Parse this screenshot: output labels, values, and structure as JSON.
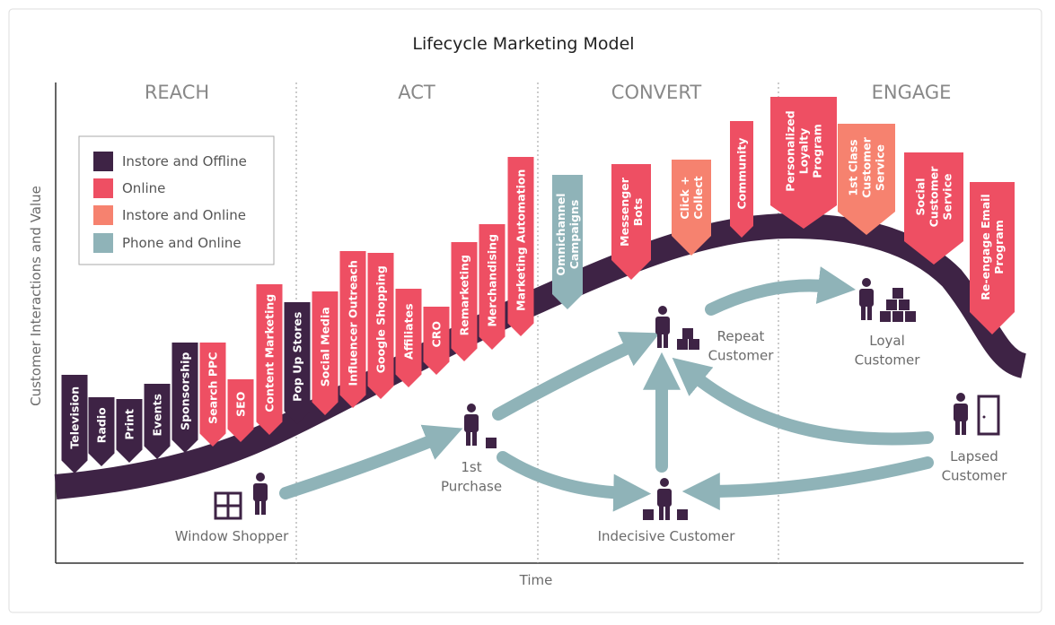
{
  "title": "Lifecycle Marketing Model",
  "axes": {
    "y_label": "Customer Interactions and Value",
    "x_label": "Time"
  },
  "phases": [
    "REACH",
    "ACT",
    "CONVERT",
    "ENGAGE"
  ],
  "legend": [
    {
      "label": "Instore and Offline",
      "color": "#3e2345"
    },
    {
      "label": "Online",
      "color": "#ee4f63"
    },
    {
      "label": "Instore and Online",
      "color": "#f6826f"
    },
    {
      "label": "Phone and Online",
      "color": "#8fb3b8"
    }
  ],
  "banners": [
    {
      "lines": [
        "Television"
      ],
      "color": "#3e2345"
    },
    {
      "lines": [
        "Radio"
      ],
      "color": "#3e2345"
    },
    {
      "lines": [
        "Print"
      ],
      "color": "#3e2345"
    },
    {
      "lines": [
        "Events"
      ],
      "color": "#3e2345"
    },
    {
      "lines": [
        "Sponsorship"
      ],
      "color": "#3e2345"
    },
    {
      "lines": [
        "Search PPC"
      ],
      "color": "#ee4f63"
    },
    {
      "lines": [
        "SEO"
      ],
      "color": "#ee4f63"
    },
    {
      "lines": [
        "Content Marketing"
      ],
      "color": "#ee4f63"
    },
    {
      "lines": [
        "Pop Up Stores"
      ],
      "color": "#3e2345"
    },
    {
      "lines": [
        "Social Media"
      ],
      "color": "#ee4f63"
    },
    {
      "lines": [
        "Influencer Outreach"
      ],
      "color": "#ee4f63"
    },
    {
      "lines": [
        "Google Shopping"
      ],
      "color": "#ee4f63"
    },
    {
      "lines": [
        "Affiliates"
      ],
      "color": "#ee4f63"
    },
    {
      "lines": [
        "CRO"
      ],
      "color": "#ee4f63"
    },
    {
      "lines": [
        "Remarketing"
      ],
      "color": "#ee4f63"
    },
    {
      "lines": [
        "Merchandising"
      ],
      "color": "#ee4f63"
    },
    {
      "lines": [
        "Marketing Automation"
      ],
      "color": "#ee4f63"
    },
    {
      "lines": [
        "Omnichannel",
        "Campaigns"
      ],
      "color": "#8fb3b8"
    },
    {
      "lines": [
        "Messenger",
        "Bots"
      ],
      "color": "#ee4f63"
    },
    {
      "lines": [
        "Click +",
        "Collect"
      ],
      "color": "#f6826f"
    },
    {
      "lines": [
        "Community"
      ],
      "color": "#ee4f63"
    },
    {
      "lines": [
        "Personalized",
        "Loyalty",
        "Program"
      ],
      "color": "#ee4f63"
    },
    {
      "lines": [
        "1st Class",
        "Customer",
        "Service"
      ],
      "color": "#f6826f"
    },
    {
      "lines": [
        "Social",
        "Customer",
        "Service"
      ],
      "color": "#ee4f63"
    },
    {
      "lines": [
        "Re-engage Email",
        "Program"
      ],
      "color": "#ee4f63"
    }
  ],
  "personas": [
    {
      "lines": [
        "Window Shopper"
      ]
    },
    {
      "lines": [
        "1st",
        "Purchase"
      ]
    },
    {
      "lines": [
        "Repeat",
        "Customer"
      ]
    },
    {
      "lines": [
        "Indecisive Customer"
      ]
    },
    {
      "lines": [
        "Loyal",
        "Customer"
      ]
    },
    {
      "lines": [
        "Lapsed",
        "Customer"
      ]
    }
  ]
}
